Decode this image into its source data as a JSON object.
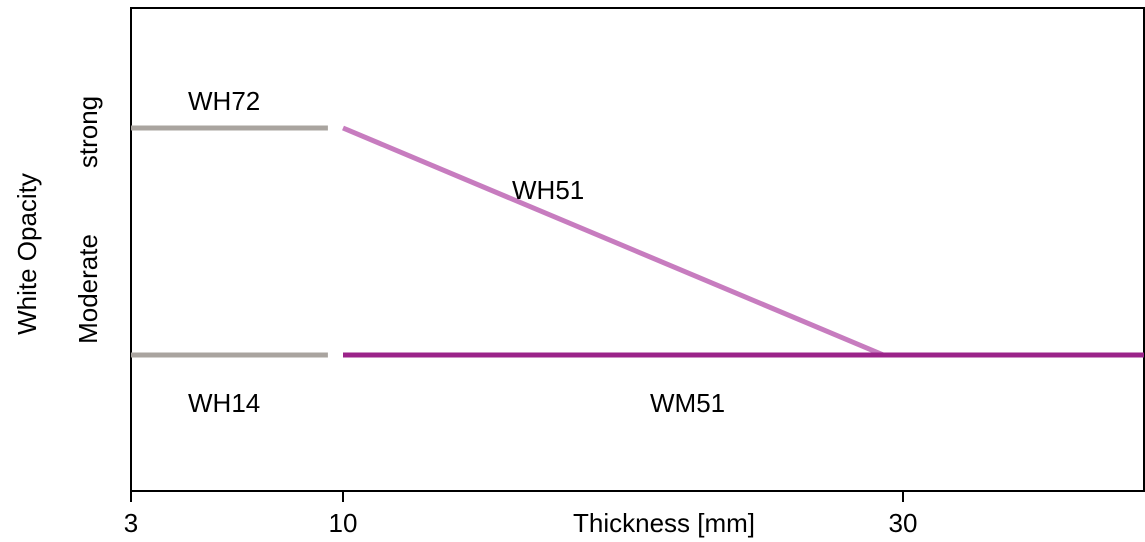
{
  "chart_data": {
    "type": "line",
    "xlabel": "Thickness [mm]",
    "ylabel": "White Opacity",
    "x_ticks": [
      {
        "label": "3",
        "value": 3
      },
      {
        "label": "10",
        "value": 10
      },
      {
        "label": "30",
        "value": 30
      }
    ],
    "y_levels": [
      {
        "label": "Moderate",
        "value": 1
      },
      {
        "label": "strong",
        "value": 2
      }
    ],
    "series": [
      {
        "name": "WH72",
        "color": "#a9a49f",
        "x": [
          3,
          9.5
        ],
        "y": [
          2,
          2
        ]
      },
      {
        "name": "WH14",
        "color": "#a9a49f",
        "x": [
          3,
          9.5
        ],
        "y": [
          1,
          1
        ]
      },
      {
        "name": "WH51",
        "color": "#c77cbf",
        "x": [
          10,
          29.3
        ],
        "y": [
          2,
          1
        ]
      },
      {
        "name": "WM51",
        "color": "#9b2389",
        "x": [
          10,
          37
        ],
        "y": [
          1,
          1
        ]
      }
    ],
    "grid": false
  }
}
